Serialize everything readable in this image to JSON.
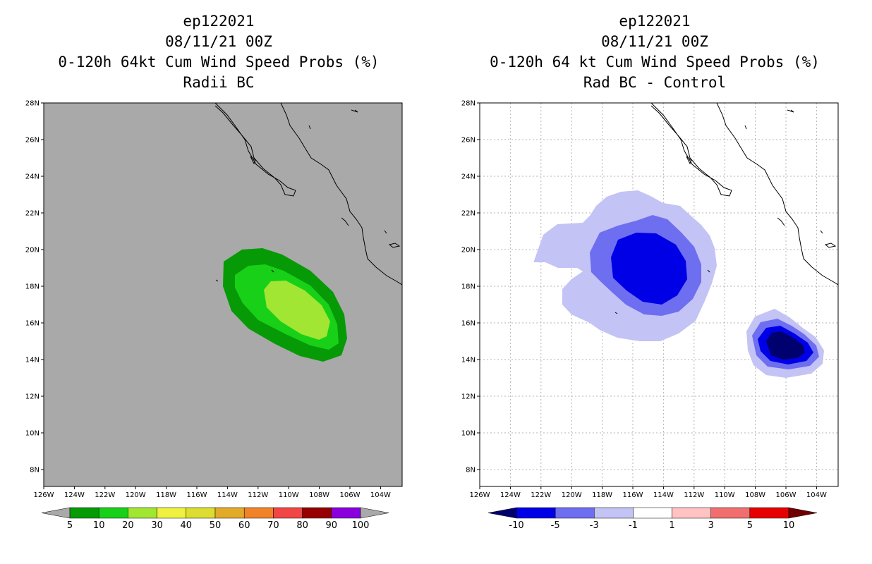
{
  "left": {
    "title_line1": "ep122021",
    "title_line2": "08/11/21 00Z",
    "title_line3": "0-120h 64kt Cum Wind Speed Probs (%)",
    "title_line4": "Radii BC",
    "colorbar": {
      "labels": [
        "5",
        "10",
        "20",
        "30",
        "40",
        "50",
        "60",
        "70",
        "80",
        "90",
        "100"
      ],
      "colors": [
        "#069a06",
        "#18d018",
        "#a0e632",
        "#f0f040",
        "#dcdc32",
        "#e1aa28",
        "#f08228",
        "#f04646",
        "#960000",
        "#8a00dc"
      ],
      "under_color": "#a9a9a9",
      "over_color": "#a9a9a9"
    },
    "background_color": "#a9a9a9"
  },
  "right": {
    "title_line1": "ep122021",
    "title_line2": "08/11/21 00Z",
    "title_line3": "0-120h 64 kt Cum Wind Speed Probs (%)",
    "title_line4": "Rad BC - Control",
    "colorbar": {
      "labels": [
        "-10",
        "-5",
        "-3",
        "-1",
        "1",
        "3",
        "5",
        "10"
      ],
      "colors": [
        "#0000e6",
        "#6e6ef0",
        "#c3c3f5",
        "#ffffff",
        "#ffc3c3",
        "#f06e6e",
        "#e60000"
      ],
      "under_color": "#00006e",
      "over_color": "#6e0000"
    }
  },
  "axes": {
    "lat_labels": [
      "28N",
      "26N",
      "24N",
      "22N",
      "20N",
      "18N",
      "16N",
      "14N",
      "12N",
      "10N",
      "8N"
    ],
    "lon_labels": [
      "126W",
      "124W",
      "122W",
      "120W",
      "118W",
      "116W",
      "114W",
      "112W",
      "110W",
      "108W",
      "106W",
      "104W"
    ]
  }
}
